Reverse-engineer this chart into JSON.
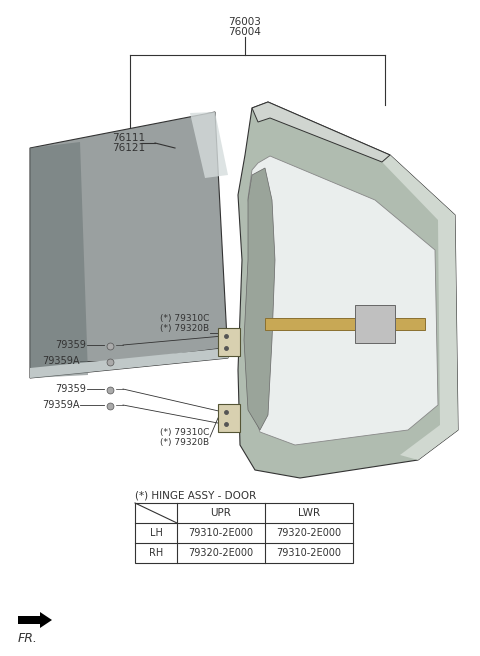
{
  "background_color": "#ffffff",
  "table_data": {
    "headers": [
      "",
      "UPR",
      "LWR"
    ],
    "rows": [
      [
        "LH",
        "79310-2E000",
        "79320-2E000"
      ],
      [
        "RH",
        "79320-2E000",
        "79310-2E000"
      ]
    ]
  },
  "hinge_label": "(*) HINGE ASSY - DOOR",
  "fr_label": "FR.",
  "label_76003": "76003\n76004",
  "label_76111": "76111\n76121",
  "label_upper_hinge": "(*) 79310C\n(*) 79320B",
  "label_lower_hinge": "(*) 79310C\n(*) 79320B",
  "label_79359_u": "79359",
  "label_79359A_u": "79359A",
  "label_79359_l": "79359",
  "label_79359A_l": "79359A"
}
